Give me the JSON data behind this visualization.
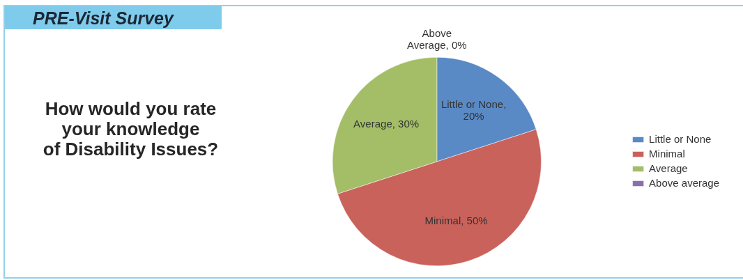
{
  "chart_data": {
    "type": "pie",
    "title": "PRE-Visit Survey",
    "subtitle": "How would you rate\nyour knowledge\nof Disability Issues?",
    "categories": [
      "Little or None",
      "Minimal",
      "Average",
      "Above average"
    ],
    "values": [
      20,
      50,
      30,
      0
    ],
    "colors": [
      "#5a8ac6",
      "#c9625b",
      "#a3be67",
      "#8a70aa"
    ],
    "value_labels": [
      "Little or None, 20%",
      "Minimal, 50%",
      "Average, 30%",
      "Above Average, 0%"
    ],
    "legend": "right"
  }
}
